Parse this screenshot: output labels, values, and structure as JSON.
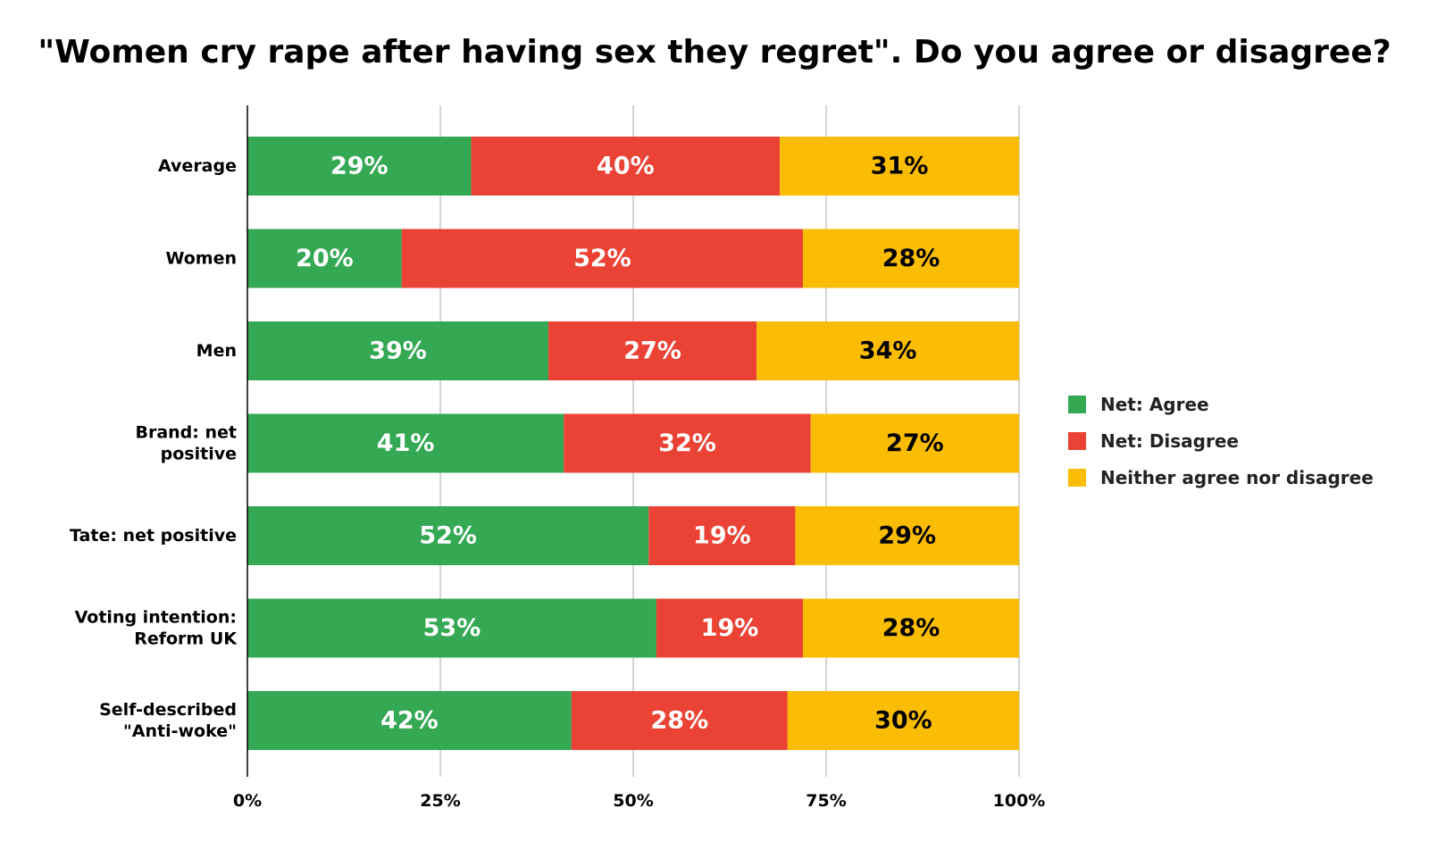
{
  "chart_data": {
    "type": "bar",
    "orientation": "horizontal",
    "stacked": true,
    "title": "\"Women cry rape after having sex they regret\". Do you agree or disagree?",
    "xlabel": "",
    "ylabel": "",
    "xlim": [
      0,
      100
    ],
    "x_ticks": [
      "0%",
      "25%",
      "50%",
      "75%",
      "100%"
    ],
    "grid": true,
    "legend_position": "right",
    "categories": [
      [
        "Average"
      ],
      [
        "Women"
      ],
      [
        "Men"
      ],
      [
        "Brand: net",
        "positive"
      ],
      [
        "Tate: net positive"
      ],
      [
        "Voting intention:",
        "Reform UK"
      ],
      [
        "Self-described",
        "\"Anti-woke\""
      ]
    ],
    "series": [
      {
        "name": "Net: Agree",
        "color": "#34a853",
        "label_color": "#ffffff",
        "values": [
          29,
          20,
          39,
          41,
          52,
          53,
          42
        ]
      },
      {
        "name": "Net: Disagree",
        "color": "#ea4335",
        "label_color": "#ffffff",
        "values": [
          40,
          52,
          27,
          32,
          19,
          19,
          28
        ]
      },
      {
        "name": "Neither agree nor disagree",
        "color": "#fbbc04",
        "label_color": "#000000",
        "values": [
          31,
          28,
          34,
          27,
          29,
          28,
          30
        ]
      }
    ]
  }
}
